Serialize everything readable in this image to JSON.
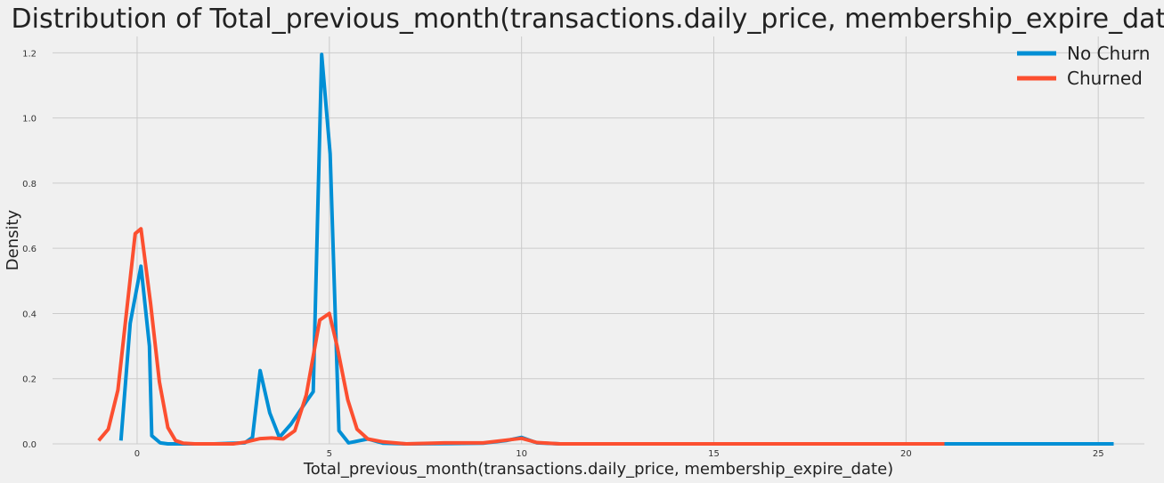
{
  "chart_data": {
    "type": "line",
    "title": "Distribution of Total_previous_month(transactions.daily_price, membership_expire_date)",
    "xlabel": "Total_previous_month(transactions.daily_price, membership_expire_date)",
    "ylabel": "Density",
    "xlim": [
      -2.2,
      26.2
    ],
    "ylim": [
      0,
      1.25
    ],
    "x_ticks": [
      0,
      5,
      10,
      15,
      20,
      25
    ],
    "x_tick_labels": [
      "0",
      "5",
      "10",
      "15",
      "20",
      "25"
    ],
    "y_ticks": [
      0.0,
      0.2,
      0.4,
      0.6,
      0.8,
      1.0,
      1.2
    ],
    "y_tick_labels": [
      "0.0",
      "0.2",
      "0.4",
      "0.6",
      "0.8",
      "1.0",
      "1.2"
    ],
    "grid": true,
    "legend_position": "top-right",
    "series": [
      {
        "name": "No Churn",
        "color": "#008fd5",
        "points": [
          [
            -0.42,
            0.01
          ],
          [
            -0.18,
            0.37
          ],
          [
            0.1,
            0.545
          ],
          [
            0.32,
            0.3
          ],
          [
            0.38,
            0.025
          ],
          [
            0.6,
            0.003
          ],
          [
            0.8,
            0.0
          ],
          [
            2.0,
            0.0
          ],
          [
            2.8,
            0.003
          ],
          [
            3.0,
            0.02
          ],
          [
            3.2,
            0.225
          ],
          [
            3.45,
            0.095
          ],
          [
            3.7,
            0.02
          ],
          [
            4.0,
            0.06
          ],
          [
            4.4,
            0.13
          ],
          [
            4.58,
            0.16
          ],
          [
            4.8,
            1.195
          ],
          [
            5.02,
            0.89
          ],
          [
            5.25,
            0.04
          ],
          [
            5.5,
            0.003
          ],
          [
            6.0,
            0.015
          ],
          [
            6.4,
            0.002
          ],
          [
            7.0,
            0.0
          ],
          [
            9.0,
            0.002
          ],
          [
            9.6,
            0.01
          ],
          [
            10.0,
            0.02
          ],
          [
            10.4,
            0.003
          ],
          [
            11.0,
            0.0
          ],
          [
            25.4,
            0.0
          ]
        ]
      },
      {
        "name": "Churned",
        "color": "#fc4f30",
        "points": [
          [
            -1.0,
            0.01
          ],
          [
            -0.75,
            0.045
          ],
          [
            -0.5,
            0.165
          ],
          [
            -0.05,
            0.645
          ],
          [
            0.1,
            0.66
          ],
          [
            0.35,
            0.43
          ],
          [
            0.58,
            0.19
          ],
          [
            0.8,
            0.05
          ],
          [
            1.0,
            0.01
          ],
          [
            1.2,
            0.002
          ],
          [
            1.5,
            0.0
          ],
          [
            2.5,
            0.0
          ],
          [
            2.8,
            0.005
          ],
          [
            3.2,
            0.016
          ],
          [
            3.5,
            0.018
          ],
          [
            3.8,
            0.015
          ],
          [
            4.1,
            0.04
          ],
          [
            4.4,
            0.15
          ],
          [
            4.75,
            0.38
          ],
          [
            5.0,
            0.4
          ],
          [
            5.2,
            0.3
          ],
          [
            5.48,
            0.135
          ],
          [
            5.72,
            0.045
          ],
          [
            6.0,
            0.015
          ],
          [
            6.4,
            0.006
          ],
          [
            7.0,
            0.0
          ],
          [
            8.0,
            0.003
          ],
          [
            9.0,
            0.003
          ],
          [
            9.5,
            0.01
          ],
          [
            10.0,
            0.017
          ],
          [
            10.4,
            0.004
          ],
          [
            11.0,
            0.0
          ],
          [
            21.0,
            0.0
          ]
        ]
      }
    ]
  }
}
